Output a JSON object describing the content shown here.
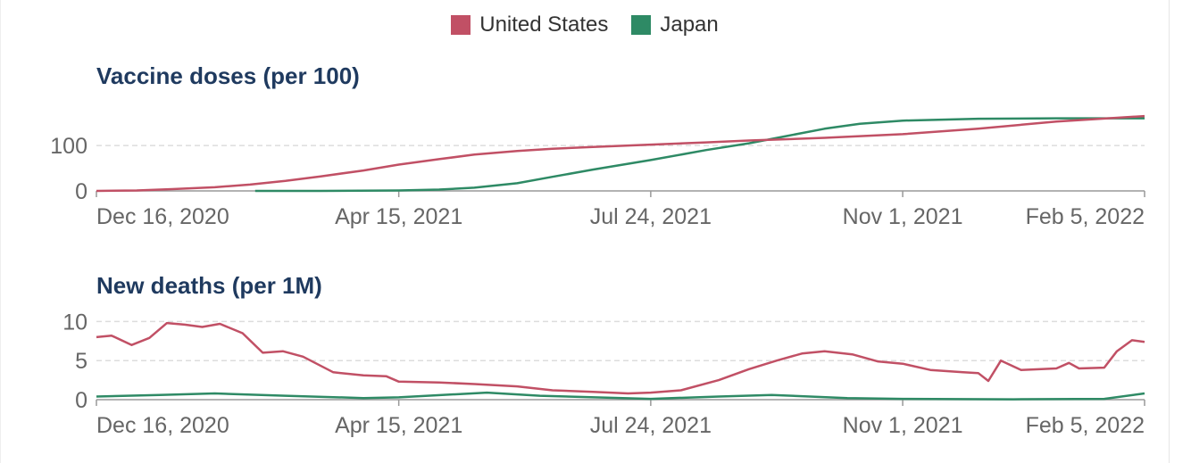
{
  "legend": [
    {
      "name": "United States",
      "color": "#c15065"
    },
    {
      "name": "Japan",
      "color": "#2e8a65"
    }
  ],
  "chart_data": [
    {
      "type": "line",
      "title": "Vaccine doses (per 100)",
      "x_ticks": [
        "Dec 16, 2020",
        "Apr 15, 2021",
        "Jul 24, 2021",
        "Nov 1, 2021",
        "Feb 5, 2022"
      ],
      "x_range": [
        "2020-12-16",
        "2022-02-05"
      ],
      "y_ticks": [
        "0",
        "100"
      ],
      "ylim": [
        0,
        175
      ],
      "grid": true,
      "series": [
        {
          "name": "United States",
          "color": "#c15065",
          "points": [
            [
              "2020-12-16",
              0
            ],
            [
              "2021-01-01",
              1
            ],
            [
              "2021-01-15",
              4
            ],
            [
              "2021-02-01",
              8
            ],
            [
              "2021-02-15",
              14
            ],
            [
              "2021-03-01",
              22
            ],
            [
              "2021-03-15",
              32
            ],
            [
              "2021-04-01",
              45
            ],
            [
              "2021-04-15",
              58
            ],
            [
              "2021-05-01",
              70
            ],
            [
              "2021-05-15",
              80
            ],
            [
              "2021-06-01",
              88
            ],
            [
              "2021-06-15",
              93
            ],
            [
              "2021-07-01",
              97
            ],
            [
              "2021-07-24",
              102
            ],
            [
              "2021-08-15",
              107
            ],
            [
              "2021-09-01",
              111
            ],
            [
              "2021-10-01",
              117
            ],
            [
              "2021-11-01",
              125
            ],
            [
              "2021-12-01",
              137
            ],
            [
              "2022-01-01",
              153
            ],
            [
              "2022-02-05",
              165
            ]
          ]
        },
        {
          "name": "Japan",
          "color": "#2e8a65",
          "points": [
            [
              "2021-02-17",
              0
            ],
            [
              "2021-03-15",
              0
            ],
            [
              "2021-04-15",
              1
            ],
            [
              "2021-05-01",
              3
            ],
            [
              "2021-05-15",
              7
            ],
            [
              "2021-06-01",
              17
            ],
            [
              "2021-06-15",
              31
            ],
            [
              "2021-07-01",
              47
            ],
            [
              "2021-07-24",
              68
            ],
            [
              "2021-08-15",
              90
            ],
            [
              "2021-09-01",
              105
            ],
            [
              "2021-09-15",
              120
            ],
            [
              "2021-10-01",
              137
            ],
            [
              "2021-10-15",
              148
            ],
            [
              "2021-11-01",
              155
            ],
            [
              "2021-12-01",
              159
            ],
            [
              "2022-01-01",
              160
            ],
            [
              "2022-02-05",
              160
            ]
          ]
        }
      ]
    },
    {
      "type": "line",
      "title": "New deaths (per 1M)",
      "x_ticks": [
        "Dec 16, 2020",
        "Apr 15, 2021",
        "Jul 24, 2021",
        "Nov 1, 2021",
        "Feb 5, 2022"
      ],
      "x_range": [
        "2020-12-16",
        "2022-02-05"
      ],
      "y_ticks": [
        "0",
        "5",
        "10"
      ],
      "ylim": [
        0,
        10.5
      ],
      "grid": true,
      "series": [
        {
          "name": "United States",
          "color": "#c15065",
          "points": [
            [
              "2020-12-16",
              8.0
            ],
            [
              "2020-12-22",
              8.2
            ],
            [
              "2020-12-30",
              7.0
            ],
            [
              "2021-01-06",
              7.9
            ],
            [
              "2021-01-13",
              9.8
            ],
            [
              "2021-01-20",
              9.6
            ],
            [
              "2021-01-27",
              9.3
            ],
            [
              "2021-02-03",
              9.7
            ],
            [
              "2021-02-12",
              8.5
            ],
            [
              "2021-02-20",
              6.0
            ],
            [
              "2021-02-28",
              6.2
            ],
            [
              "2021-03-08",
              5.5
            ],
            [
              "2021-03-20",
              3.5
            ],
            [
              "2021-04-01",
              3.1
            ],
            [
              "2021-04-10",
              3.0
            ],
            [
              "2021-04-15",
              2.3
            ],
            [
              "2021-05-01",
              2.2
            ],
            [
              "2021-05-15",
              2.0
            ],
            [
              "2021-06-01",
              1.7
            ],
            [
              "2021-06-15",
              1.2
            ],
            [
              "2021-07-01",
              1.0
            ],
            [
              "2021-07-15",
              0.8
            ],
            [
              "2021-07-24",
              0.9
            ],
            [
              "2021-08-05",
              1.2
            ],
            [
              "2021-08-20",
              2.5
            ],
            [
              "2021-09-01",
              3.9
            ],
            [
              "2021-09-12",
              5.0
            ],
            [
              "2021-09-22",
              5.9
            ],
            [
              "2021-10-01",
              6.2
            ],
            [
              "2021-10-12",
              5.8
            ],
            [
              "2021-10-22",
              4.9
            ],
            [
              "2021-11-01",
              4.6
            ],
            [
              "2021-11-12",
              3.8
            ],
            [
              "2021-11-25",
              3.5
            ],
            [
              "2021-12-01",
              3.4
            ],
            [
              "2021-12-05",
              2.4
            ],
            [
              "2021-12-10",
              5.0
            ],
            [
              "2021-12-18",
              3.8
            ],
            [
              "2022-01-01",
              4.0
            ],
            [
              "2022-01-06",
              4.7
            ],
            [
              "2022-01-10",
              4.0
            ],
            [
              "2022-01-20",
              4.1
            ],
            [
              "2022-01-25",
              6.2
            ],
            [
              "2022-01-31",
              7.6
            ],
            [
              "2022-02-05",
              7.4
            ]
          ]
        },
        {
          "name": "Japan",
          "color": "#2e8a65",
          "points": [
            [
              "2020-12-16",
              0.4
            ],
            [
              "2021-01-10",
              0.6
            ],
            [
              "2021-02-01",
              0.8
            ],
            [
              "2021-03-01",
              0.5
            ],
            [
              "2021-04-01",
              0.2
            ],
            [
              "2021-04-15",
              0.3
            ],
            [
              "2021-05-20",
              0.9
            ],
            [
              "2021-06-10",
              0.5
            ],
            [
              "2021-07-24",
              0.1
            ],
            [
              "2021-08-20",
              0.4
            ],
            [
              "2021-09-10",
              0.6
            ],
            [
              "2021-10-10",
              0.2
            ],
            [
              "2021-11-01",
              0.1
            ],
            [
              "2021-12-15",
              0.05
            ],
            [
              "2022-01-20",
              0.1
            ],
            [
              "2022-02-05",
              0.8
            ]
          ]
        }
      ]
    }
  ]
}
